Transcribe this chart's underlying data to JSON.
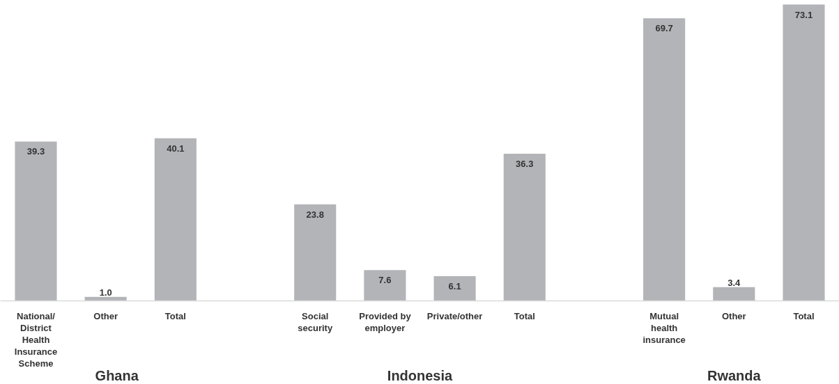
{
  "chart_data": {
    "type": "bar",
    "categories": [
      "National/\nDistrict\nHealth\nInsurance\nScheme",
      "Other",
      "Total",
      null,
      "Social\nsecurity",
      "Provided by\nemployer",
      "Private/other",
      "Total",
      null,
      "Mutual\nhealth\ninsurance",
      "Other",
      "Total"
    ],
    "values": [
      39.3,
      1.0,
      40.1,
      null,
      23.8,
      7.6,
      6.1,
      36.3,
      null,
      69.7,
      3.4,
      73.1
    ],
    "color": "#b3b4b8",
    "value_labels": [
      "39.3",
      "1.0",
      "40.1",
      null,
      "23.8",
      "7.6",
      "6.1",
      "36.3",
      null,
      "69.7",
      "3.4",
      "73.1"
    ],
    "annotations": [
      "Ghana",
      "Indonesia",
      "Rwanda"
    ]
  }
}
